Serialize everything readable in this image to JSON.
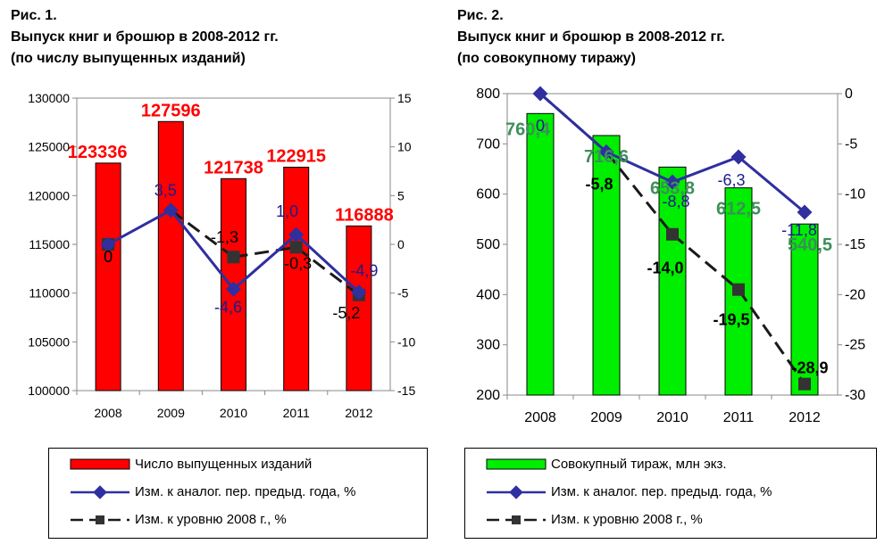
{
  "fig1": {
    "caption_line1": "Рис. 1.",
    "caption_line2": "Выпуск книг и брошюр в 2008-2012 гг.",
    "caption_line3": "(по числу выпущенных изданий)",
    "legend": [
      "Число выпущенных изданий",
      "Изм. к аналог. пер. предыд. года, %",
      "Изм. к уровню 2008 г., %"
    ]
  },
  "fig2": {
    "caption_line1": "Рис. 2.",
    "caption_line2": "Выпуск книг и брошюр в 2008-2012 гг.",
    "caption_line3": "(по совокупному тиражу)",
    "legend": [
      "Совокупный тираж, млн экз.",
      "Изм. к аналог. пер. предыд. года, %",
      "Изм. к уровню 2008 г., %"
    ]
  },
  "colors": {
    "bar1": "#ff0000",
    "bar2": "#00ee00",
    "yoy_line": "#2f2f9f",
    "base_line": "#1a1a1a",
    "label1": "#ff0000",
    "label2": "#3c8f5a",
    "label_yoy": "#1c1c8c",
    "label_base": "#000000"
  },
  "chart_data": [
    {
      "type": "bar",
      "categories": [
        "2008",
        "2009",
        "2010",
        "2011",
        "2012"
      ],
      "y_left": {
        "min": 100000,
        "max": 130000,
        "ticks": [
          "100000",
          "105000",
          "110000",
          "115000",
          "120000",
          "125000",
          "130000"
        ]
      },
      "y_right": {
        "min": -15,
        "max": 15,
        "ticks": [
          "-15",
          "-10",
          "-5",
          "0",
          "5",
          "10",
          "15"
        ]
      },
      "bars": {
        "name": "Число выпущенных изданий",
        "values": [
          123336,
          127596,
          121738,
          122915,
          116888
        ],
        "labels": [
          "123336",
          "127596",
          "121738",
          "122915",
          "116888"
        ]
      },
      "lines": [
        {
          "name": "Изм. к аналог. пер. предыд. года, %",
          "axis": "right",
          "values": [
            0,
            3.5,
            -4.6,
            1.0,
            -4.9
          ],
          "labels": [
            "0",
            "3,5",
            "-4,6",
            "1,0",
            "-4,9"
          ]
        },
        {
          "name": "Изм. к уровню 2008 г., %",
          "axis": "right",
          "values": [
            0,
            3.5,
            -1.3,
            -0.3,
            -5.2
          ],
          "labels": [
            "0",
            "3,5",
            "-1,3",
            "-0,3",
            "-5,2"
          ],
          "dashed": true
        }
      ],
      "grid": false,
      "legend": "bottom"
    },
    {
      "type": "bar",
      "categories": [
        "2008",
        "2009",
        "2010",
        "2011",
        "2012"
      ],
      "y_left": {
        "min": 200,
        "max": 800,
        "ticks": [
          "200",
          "300",
          "400",
          "500",
          "600",
          "700",
          "800"
        ]
      },
      "y_right": {
        "min": -30,
        "max": 0,
        "ticks": [
          "-30",
          "-25",
          "-20",
          "-15",
          "-10",
          "-5",
          "0"
        ]
      },
      "bars": {
        "name": "Совокупный тираж, млн экз.",
        "values": [
          760.4,
          716.6,
          653.8,
          612.5,
          540.5
        ],
        "labels": [
          "760,4",
          "716,6",
          "653,8",
          "612,5",
          "540,5"
        ]
      },
      "lines": [
        {
          "name": "Изм. к аналог. пер. предыд. года, %",
          "axis": "right",
          "values": [
            0,
            -5.8,
            -8.8,
            -6.3,
            -11.8
          ],
          "labels": [
            "0",
            "-5,8",
            "-8,8",
            "-6,3",
            "-11,8"
          ]
        },
        {
          "name": "Изм. к уровню 2008 г., %",
          "axis": "right",
          "values": [
            0,
            -5.8,
            -14.0,
            -19.5,
            -28.9
          ],
          "labels": [
            "0",
            "-5,8",
            "-14,0",
            "-19,5",
            "-28,9"
          ],
          "dashed": true
        }
      ],
      "grid": false,
      "legend": "bottom"
    }
  ]
}
